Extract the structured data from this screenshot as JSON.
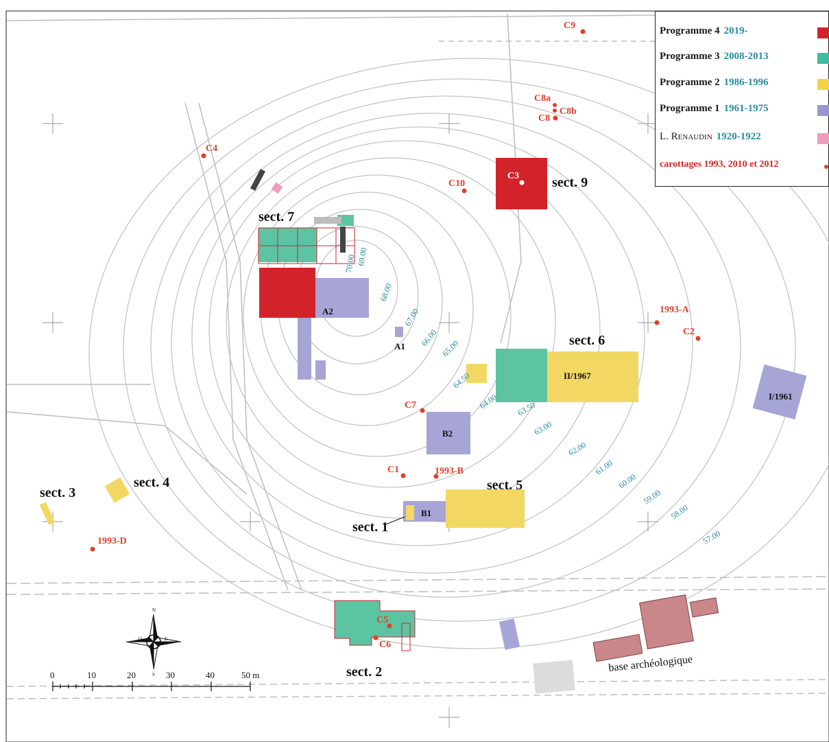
{
  "legend": {
    "items": [
      {
        "name": "Programme 4",
        "years": "2019-",
        "color": "#d3232a"
      },
      {
        "name": "Programme 3",
        "years": "2008-2013",
        "color": "#3dbea0"
      },
      {
        "name": "Programme 2",
        "years": "1986-1996",
        "color": "#f2d24a"
      },
      {
        "name": "Programme 1",
        "years": "1961-1975",
        "color": "#9a97cf"
      },
      {
        "name": "L. Renaudin",
        "years": "1920-1922",
        "color": "#f29bbd"
      }
    ],
    "cores_label": "carottages 1993, 2010 et 2012"
  },
  "sectors": [
    "sect. 1",
    "sect. 2",
    "sect. 3",
    "sect. 4",
    "sect. 5",
    "sect. 6",
    "sect. 7",
    "sect. 9"
  ],
  "areas": [
    "A1",
    "A2",
    "B1",
    "B2",
    "II/1967",
    "I/1961"
  ],
  "cores": [
    "C1",
    "C2",
    "C3",
    "C4",
    "C5",
    "C6",
    "C7",
    "C8",
    "C8a",
    "C8b",
    "C9",
    "C10",
    "1993-A",
    "1993-B",
    "1993-D"
  ],
  "contours": [
    "70.00",
    "69.00",
    "68.00",
    "67.00",
    "66.00",
    "65.00",
    "64.50",
    "64.00",
    "63.50",
    "63.00",
    "62.00",
    "61.00",
    "60.00",
    "59.00",
    "58.00",
    "57.00"
  ],
  "scale": {
    "ticks": [
      "0",
      "10",
      "20",
      "30",
      "40",
      "50 m"
    ]
  },
  "compass": {
    "n": "N",
    "s": "S",
    "e": "E",
    "o": "O"
  },
  "base_label": "base archéologique"
}
